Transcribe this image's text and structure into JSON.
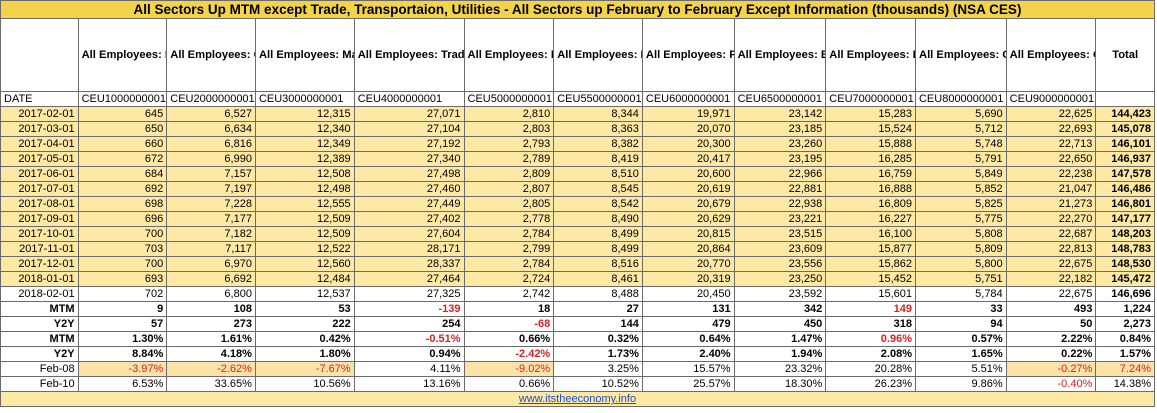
{
  "title": "All Sectors Up MTM except Trade, Transportaion, Utilities - All Sectors up February to February Except Information (thousands) (NSA CES)",
  "headers": [
    "All Employees: Mining and Logging",
    "All Employees: Construction",
    "All Employees: Manufacturing",
    "All Employees: Trade, Transportation, and Utilities",
    "All Employees: Information",
    "All Employees: Financial Activities",
    "All Employees: Professional and Business Services",
    "All Employees: Education and Health Services",
    "All Employees: Leisure and Hospitality",
    "All Employees: Other Services",
    "All Employees: Government",
    "Total"
  ],
  "code_label": "DATE",
  "codes": [
    "CEU1000000001",
    "CEU2000000001",
    "CEU3000000001",
    "CEU4000000001",
    "CEU5000000001",
    "CEU5500000001",
    "CEU6000000001",
    "CEU6500000001",
    "CEU7000000001",
    "CEU8000000001",
    "CEU9000000001",
    ""
  ],
  "rows": [
    {
      "date": "2017-02-01",
      "values": [
        "645",
        "6,527",
        "12,315",
        "27,071",
        "2,810",
        "8,344",
        "19,971",
        "23,142",
        "15,283",
        "5,690",
        "22,625",
        "144,423"
      ]
    },
    {
      "date": "2017-03-01",
      "values": [
        "650",
        "6,634",
        "12,340",
        "27,104",
        "2,803",
        "8,363",
        "20,070",
        "23,185",
        "15,524",
        "5,712",
        "22,693",
        "145,078"
      ]
    },
    {
      "date": "2017-04-01",
      "values": [
        "660",
        "6,816",
        "12,349",
        "27,192",
        "2,793",
        "8,382",
        "20,300",
        "23,260",
        "15,888",
        "5,748",
        "22,713",
        "146,101"
      ]
    },
    {
      "date": "2017-05-01",
      "values": [
        "672",
        "6,990",
        "12,389",
        "27,340",
        "2,789",
        "8,419",
        "20,417",
        "23,195",
        "16,285",
        "5,791",
        "22,650",
        "146,937"
      ]
    },
    {
      "date": "2017-06-01",
      "values": [
        "684",
        "7,157",
        "12,508",
        "27,498",
        "2,809",
        "8,510",
        "20,600",
        "22,966",
        "16,759",
        "5,849",
        "22,238",
        "147,578"
      ]
    },
    {
      "date": "2017-07-01",
      "values": [
        "692",
        "7,197",
        "12,498",
        "27,460",
        "2,807",
        "8,545",
        "20,619",
        "22,881",
        "16,888",
        "5,852",
        "21,047",
        "146,486"
      ]
    },
    {
      "date": "2017-08-01",
      "values": [
        "698",
        "7,228",
        "12,555",
        "27,449",
        "2,805",
        "8,542",
        "20,679",
        "22,938",
        "16,809",
        "5,825",
        "21,273",
        "146,801"
      ]
    },
    {
      "date": "2017-09-01",
      "values": [
        "696",
        "7,177",
        "12,509",
        "27,402",
        "2,778",
        "8,490",
        "20,629",
        "23,221",
        "16,227",
        "5,775",
        "22,270",
        "147,177"
      ]
    },
    {
      "date": "2017-10-01",
      "values": [
        "700",
        "7,182",
        "12,509",
        "27,604",
        "2,784",
        "8,499",
        "20,815",
        "23,515",
        "16,100",
        "5,808",
        "22,687",
        "148,203"
      ]
    },
    {
      "date": "2017-11-01",
      "values": [
        "703",
        "7,117",
        "12,522",
        "28,171",
        "2,799",
        "8,499",
        "20,864",
        "23,609",
        "15,877",
        "5,809",
        "22,813",
        "148,783"
      ]
    },
    {
      "date": "2017-12-01",
      "values": [
        "700",
        "6,970",
        "12,560",
        "28,337",
        "2,784",
        "8,516",
        "20,770",
        "23,556",
        "15,862",
        "5,800",
        "22,675",
        "148,530"
      ]
    },
    {
      "date": "2018-01-01",
      "values": [
        "693",
        "6,692",
        "12,484",
        "27,464",
        "2,724",
        "8,461",
        "20,319",
        "23,250",
        "15,452",
        "5,751",
        "22,182",
        "145,472"
      ]
    },
    {
      "date": "2018-02-01",
      "values": [
        "702",
        "6,800",
        "12,537",
        "27,325",
        "2,742",
        "8,488",
        "20,450",
        "23,592",
        "15,601",
        "5,784",
        "22,675",
        "146,696"
      ]
    }
  ],
  "stats": [
    {
      "label": "MTM",
      "values": [
        "9",
        "108",
        "53",
        "-139",
        "18",
        "27",
        "131",
        "342",
        "149",
        "33",
        "493",
        "1,224"
      ]
    },
    {
      "label": "Y2Y",
      "values": [
        "57",
        "273",
        "222",
        "254",
        "-68",
        "144",
        "479",
        "450",
        "318",
        "94",
        "50",
        "2,273"
      ]
    },
    {
      "label": "MTM",
      "values": [
        "1.30%",
        "1.61%",
        "0.42%",
        "-0.51%",
        "0.66%",
        "0.32%",
        "0.64%",
        "1.47%",
        "0.96%",
        "0.57%",
        "2.22%",
        "0.84%"
      ]
    },
    {
      "label": "Y2Y",
      "values": [
        "8.84%",
        "4.18%",
        "1.80%",
        "0.94%",
        "-2.42%",
        "1.73%",
        "2.40%",
        "1.94%",
        "2.08%",
        "1.65%",
        "0.22%",
        "1.57%"
      ]
    }
  ],
  "comparisons": [
    {
      "label": "Feb-08",
      "values": [
        "-3.97%",
        "-2.62%",
        "-7.67%",
        "4.11%",
        "-9.02%",
        "3.25%",
        "15.57%",
        "23.32%",
        "20.28%",
        "5.51%",
        "-0.27%",
        "7.24%"
      ]
    },
    {
      "label": "Feb-10",
      "values": [
        "6.53%",
        "33.65%",
        "10.56%",
        "13.16%",
        "0.66%",
        "10.52%",
        "25.57%",
        "18.30%",
        "26.23%",
        "9.86%",
        "-0.40%",
        "14.38%"
      ]
    }
  ],
  "footer_link": "www.itstheeconomy.info",
  "colors": {
    "title_bg": "#f2d34a",
    "row_bg": "#fde9a3",
    "negative": "#e02020",
    "link": "#1a4fd6"
  }
}
